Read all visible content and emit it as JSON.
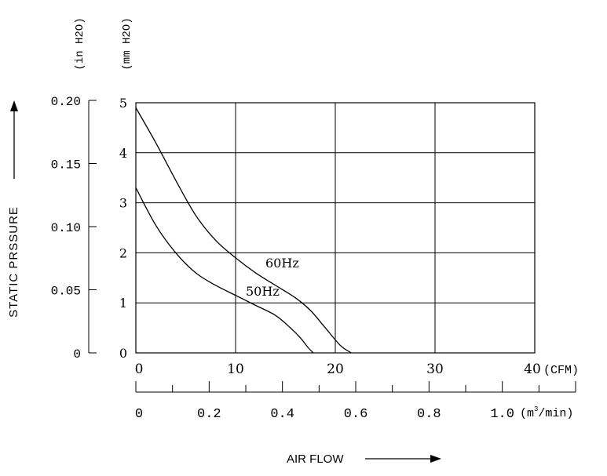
{
  "chart_data": {
    "type": "line",
    "x_unit_cfm": "(CFM)",
    "x_unit_m3_prefix": "(m",
    "x_unit_m3_sup": "3",
    "x_unit_m3_suffix": "/min)",
    "y_unit_in": "(in H2O)",
    "y_unit_mm": "(mm H2O)",
    "ylabel": "STATIC PRSSURE",
    "xlabel": "AIR FLOW",
    "xlim": [
      0,
      40
    ],
    "ylim": [
      0,
      5
    ],
    "grid": true,
    "x_ticks_cfm": [
      "0",
      "10",
      "20",
      "30",
      "40"
    ],
    "x_ticks_m3": [
      "0",
      "0.2",
      "0.4",
      "0.6",
      "0.8",
      "1.0"
    ],
    "y_ticks_mm": [
      "0",
      "1",
      "2",
      "3",
      "4",
      "5"
    ],
    "y_ticks_in": [
      "0",
      "0.05",
      "0.10",
      "0.15",
      "0.20"
    ],
    "series": [
      {
        "name": "60Hz",
        "x": [
          0,
          2,
          4,
          6,
          8,
          10,
          12,
          14,
          16,
          17.5,
          19,
          20.5,
          21.6
        ],
        "y": [
          4.9,
          4.2,
          3.45,
          2.75,
          2.25,
          1.9,
          1.6,
          1.35,
          1.1,
          0.85,
          0.5,
          0.15,
          0
        ]
      },
      {
        "name": "50Hz",
        "x": [
          0,
          2,
          4,
          6,
          8,
          10,
          12,
          14,
          15.5,
          16.5,
          17.3,
          17.8
        ],
        "y": [
          3.3,
          2.55,
          2.0,
          1.6,
          1.35,
          1.15,
          0.95,
          0.75,
          0.5,
          0.3,
          0.1,
          0
        ]
      }
    ]
  }
}
